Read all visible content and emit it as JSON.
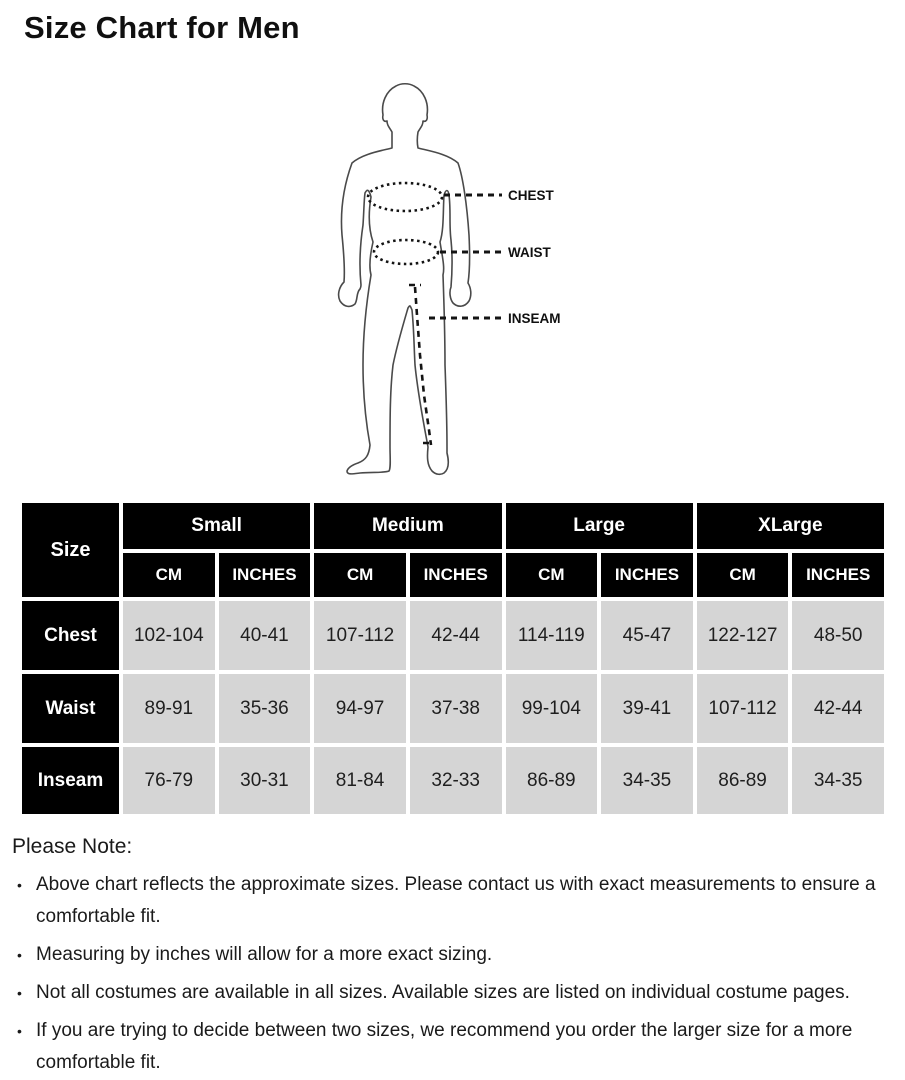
{
  "page": {
    "title": "Size Chart for Men"
  },
  "diagram": {
    "labels": {
      "chest": "CHEST",
      "waist": "WAIST",
      "inseam": "INSEAM"
    }
  },
  "table": {
    "corner_label": "Size",
    "size_groups": [
      "Small",
      "Medium",
      "Large",
      "XLarge"
    ],
    "unit_headers": [
      "CM",
      "INCHES"
    ],
    "rows": [
      {
        "label": "Chest",
        "values": [
          "102-104",
          "40-41",
          "107-112",
          "42-44",
          "114-119",
          "45-47",
          "122-127",
          "48-50"
        ]
      },
      {
        "label": "Waist",
        "values": [
          "89-91",
          "35-36",
          "94-97",
          "37-38",
          "99-104",
          "39-41",
          "107-112",
          "42-44"
        ]
      },
      {
        "label": "Inseam",
        "values": [
          "76-79",
          "30-31",
          "81-84",
          "32-33",
          "86-89",
          "34-35",
          "86-89",
          "34-35"
        ]
      }
    ]
  },
  "notes": {
    "heading": "Please Note:",
    "bullet_glyph": "•",
    "bullets": [
      "Above chart reflects the approximate sizes. Please contact us with exact measurements to ensure a comfortable fit.",
      "Measuring by inches will allow for a more exact sizing.",
      "Not all costumes are available in all sizes. Available sizes are listed on individual costume pages.",
      "If you are trying to decide between two sizes, we recommend you order the larger size for a more comfortable fit."
    ]
  },
  "colors": {
    "page_bg": "#ffffff",
    "header_bg": "#000000",
    "header_text": "#ffffff",
    "cell_bg": "#d5d5d5",
    "cell_text": "#1f1f1f",
    "outline": "#4a4a4a",
    "annotation": "#141414"
  }
}
